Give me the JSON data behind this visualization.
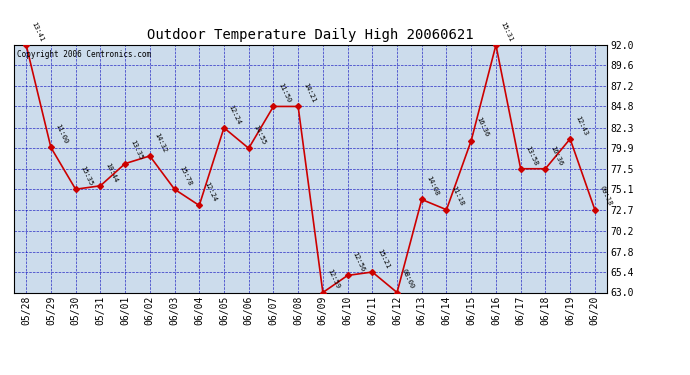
{
  "title": "Outdoor Temperature Daily High 20060621",
  "copyright_text": "Copyright 2006 Centronics.com",
  "x_labels": [
    "05/28",
    "05/29",
    "05/30",
    "05/31",
    "06/01",
    "06/02",
    "06/03",
    "06/04",
    "06/05",
    "06/06",
    "06/07",
    "06/08",
    "06/09",
    "06/10",
    "06/11",
    "06/12",
    "06/13",
    "06/14",
    "06/15",
    "06/16",
    "06/17",
    "06/18",
    "06/19",
    "06/20"
  ],
  "y_values": [
    92.0,
    80.0,
    75.1,
    75.5,
    78.1,
    79.0,
    75.1,
    73.2,
    82.3,
    79.9,
    84.8,
    84.8,
    63.0,
    65.0,
    65.4,
    63.0,
    73.9,
    72.7,
    80.8,
    92.0,
    77.5,
    77.5,
    81.0,
    72.7
  ],
  "time_labels": [
    "13:41",
    "11:00",
    "15:35",
    "10:44",
    "13:35",
    "14:32",
    "15:78",
    "12:24",
    "12:24",
    "14:55",
    "11:50",
    "14:21",
    "12:59",
    "12:56",
    "15:21",
    "08:00",
    "14:08",
    "11:18",
    "16:36",
    "15:31",
    "13:58",
    "16:36",
    "12:43",
    "09:18"
  ],
  "ylim_min": 63.0,
  "ylim_max": 92.0,
  "y_ticks": [
    63.0,
    65.4,
    67.8,
    70.2,
    72.7,
    75.1,
    77.5,
    79.9,
    82.3,
    84.8,
    87.2,
    89.6,
    92.0
  ],
  "line_color": "#CC0000",
  "marker_color": "#CC0000",
  "bg_color": "#CCDCEC",
  "outer_bg_color": "#FFFFFF",
  "grid_color": "#0000BB",
  "title_color": "#000000",
  "marker_size": 3,
  "line_width": 1.2,
  "fig_width": 6.9,
  "fig_height": 3.75,
  "dpi": 100
}
